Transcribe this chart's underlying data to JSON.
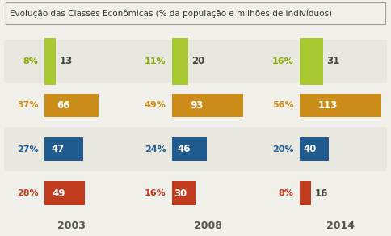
{
  "title": "Evolução das Classes Econômicas (% da população e milhões de indivíduos)",
  "years": [
    "2003",
    "2008",
    "2014"
  ],
  "rows": [
    {
      "color": "#a8c832",
      "text_color": "#8aaa00",
      "pcts": [
        "8%",
        "11%",
        "16%"
      ],
      "vals": [
        "13",
        "20",
        "31"
      ],
      "pct_vals": [
        8,
        11,
        16
      ],
      "val_inside": [
        false,
        false,
        true
      ]
    },
    {
      "color": "#cc8c1a",
      "text_color": "#cc8c1a",
      "pcts": [
        "37%",
        "49%",
        "56%"
      ],
      "vals": [
        "66",
        "93",
        "113"
      ],
      "pct_vals": [
        37,
        49,
        56
      ],
      "val_inside": [
        true,
        true,
        true
      ]
    },
    {
      "color": "#1f5b8e",
      "text_color": "#1f5b8e",
      "pcts": [
        "27%",
        "24%",
        "20%"
      ],
      "vals": [
        "47",
        "46",
        "40"
      ],
      "pct_vals": [
        27,
        24,
        20
      ],
      "val_inside": [
        true,
        true,
        true
      ]
    },
    {
      "color": "#c03a1e",
      "text_color": "#c03a1e",
      "pcts": [
        "28%",
        "16%",
        "8%"
      ],
      "vals": [
        "49",
        "30",
        "16"
      ],
      "pct_vals": [
        28,
        16,
        8
      ],
      "val_inside": [
        true,
        true,
        false
      ]
    }
  ],
  "bg_color": "#f0efea",
  "band_colors": [
    "#e8e7e0",
    "#f0efea",
    "#e8e7e0",
    "#f0efea"
  ],
  "title_fontsize": 7.5,
  "year_fontsize": 9,
  "val_fontsize": 8.5,
  "pct_fontsize": 8.0,
  "bar_height": 0.72,
  "max_pct": 56
}
